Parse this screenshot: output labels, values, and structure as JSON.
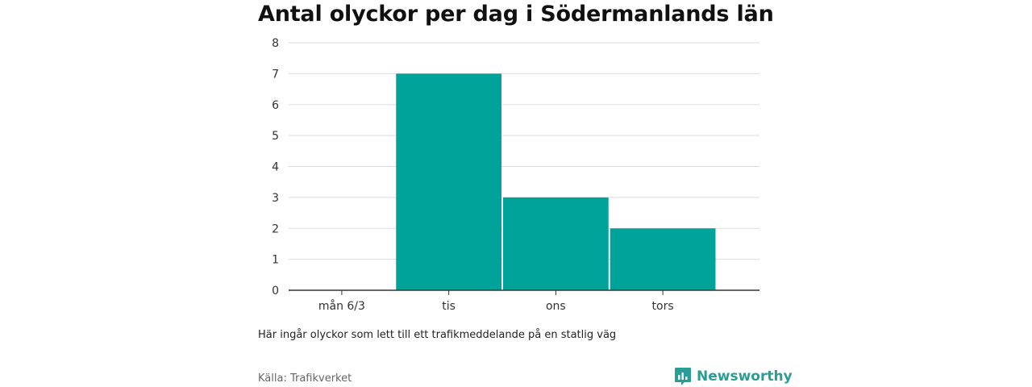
{
  "title": "Antal olyckor per dag i Södermanlands län",
  "note": "Här ingår olyckor som lett till ett trafikmeddelande på en statlig väg",
  "source": "Källa: Trafikverket",
  "brand": {
    "name": "Newsworthy",
    "icon": "bar-chart-speech-bubble-icon",
    "color": "#2a9d96"
  },
  "chart_data": {
    "type": "bar",
    "title": "Antal olyckor per dag i Södermanlands län",
    "xlabel": "",
    "ylabel": "",
    "categories": [
      "mån 6/3",
      "tis",
      "ons",
      "tors"
    ],
    "values": [
      0,
      7,
      3,
      2
    ],
    "yticks": [
      0,
      1,
      2,
      3,
      4,
      5,
      6,
      7,
      8
    ],
    "ylim": [
      0,
      8
    ],
    "grid": true,
    "legend": "none",
    "bar_color": "#00a39a"
  }
}
